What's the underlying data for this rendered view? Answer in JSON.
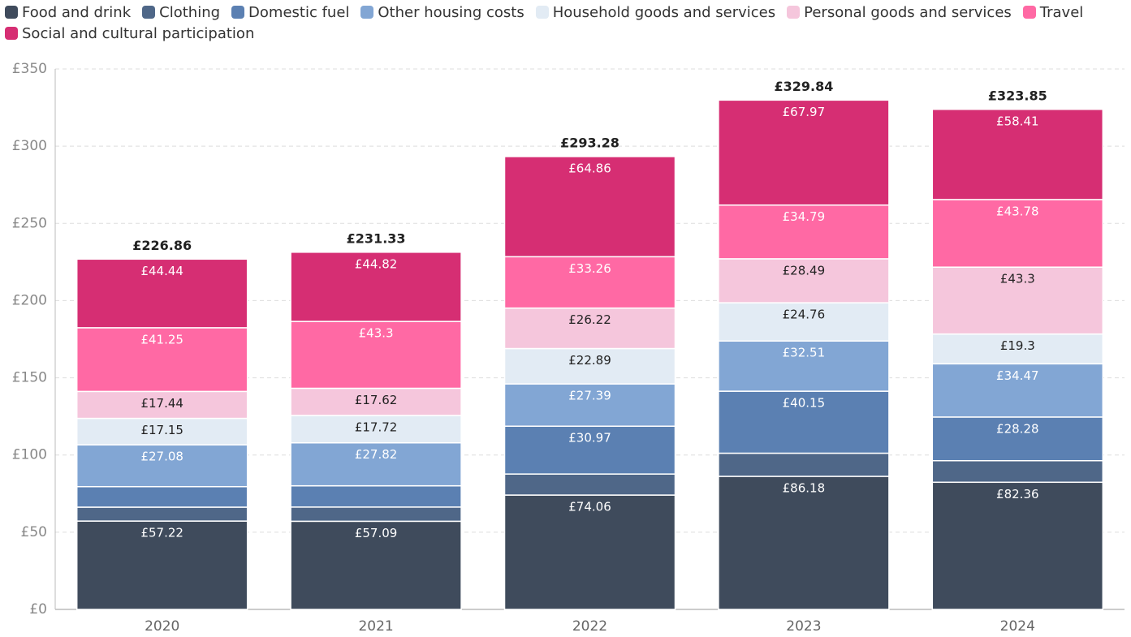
{
  "chart_data": {
    "type": "stacked_bar",
    "categories": [
      "2020",
      "2021",
      "2022",
      "2023",
      "2024"
    ],
    "series": [
      {
        "name": "Food and drink",
        "color": "#3f4b5c",
        "values": [
          57.22,
          57.09,
          74.06,
          86.18,
          82.36
        ],
        "value_labels": [
          "£57.22",
          "£57.09",
          "£74.06",
          "£86.18",
          "£82.36"
        ]
      },
      {
        "name": "Clothing",
        "color": "#4f6788",
        "values": [
          9.0,
          9.2,
          13.63,
          14.99,
          13.95
        ]
      },
      {
        "name": "Domestic fuel",
        "color": "#5b80b2",
        "values": [
          13.28,
          13.76,
          30.97,
          40.15,
          28.28
        ],
        "value_labels": [
          null,
          null,
          "£30.97",
          "£40.15",
          "£28.28"
        ]
      },
      {
        "name": "Other housing costs",
        "color": "#82a6d4",
        "values": [
          27.08,
          27.82,
          27.39,
          32.51,
          34.47
        ],
        "value_labels": [
          "£27.08",
          "£27.82",
          "£27.39",
          "£32.51",
          "£34.47"
        ]
      },
      {
        "name": "Household goods and services",
        "color": "#e2ebf4",
        "values": [
          17.15,
          17.72,
          22.89,
          24.76,
          19.3
        ],
        "value_labels": [
          "£17.15",
          "£17.72",
          "£22.89",
          "£24.76",
          "£19.3"
        ]
      },
      {
        "name": "Personal goods and services",
        "color": "#f5c6dc",
        "values": [
          17.44,
          17.62,
          26.22,
          28.49,
          43.3
        ],
        "value_labels": [
          "£17.44",
          "£17.62",
          "£26.22",
          "£28.49",
          "£43.3"
        ]
      },
      {
        "name": "Travel",
        "color": "#ff69a4",
        "values": [
          41.25,
          43.3,
          33.26,
          34.79,
          43.78
        ],
        "value_labels": [
          "£41.25",
          "£43.3",
          "£33.26",
          "£34.79",
          "£43.78"
        ]
      },
      {
        "name": "Social and cultural participation",
        "color": "#d62e73",
        "values": [
          44.44,
          44.82,
          64.86,
          67.97,
          58.41
        ],
        "value_labels": [
          "£44.44",
          "£44.82",
          "£64.86",
          "£67.97",
          "£58.41"
        ]
      }
    ],
    "total_labels": [
      "£226.86",
      "£231.33",
      "£293.28",
      "£329.84",
      "£323.85"
    ],
    "ylim": [
      0,
      350
    ],
    "yticks": [
      {
        "value": 0,
        "label": "£0"
      },
      {
        "value": 50,
        "label": "£50"
      },
      {
        "value": 100,
        "label": "£100"
      },
      {
        "value": 150,
        "label": "£150"
      },
      {
        "value": 200,
        "label": "£200"
      },
      {
        "value": 250,
        "label": "£250"
      },
      {
        "value": 300,
        "label": "£300"
      },
      {
        "value": 350,
        "label": "£350"
      }
    ],
    "grid": true
  }
}
